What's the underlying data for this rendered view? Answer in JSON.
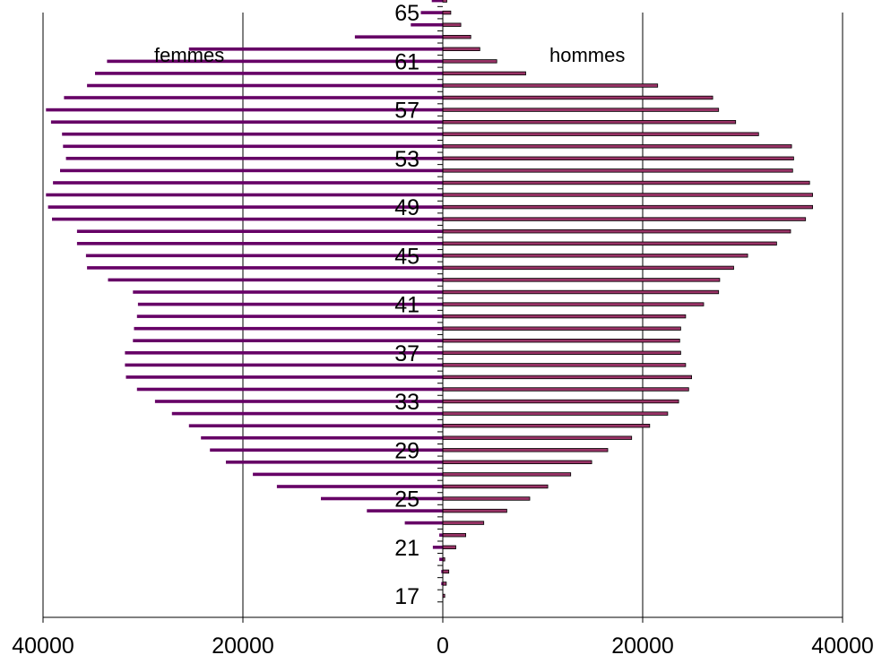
{
  "chart_data": {
    "type": "bar",
    "orientation": "horizontal",
    "layout": "population-pyramid",
    "categories": [
      17,
      18,
      19,
      20,
      21,
      22,
      23,
      24,
      25,
      26,
      27,
      28,
      29,
      30,
      31,
      32,
      33,
      34,
      35,
      36,
      37,
      38,
      39,
      40,
      41,
      42,
      43,
      44,
      45,
      46,
      47,
      48,
      49,
      50,
      51,
      52,
      53,
      54,
      55,
      56,
      57,
      58,
      59,
      60,
      61,
      62,
      63,
      64,
      65,
      66
    ],
    "y_tick_labels": [
      "17",
      "21",
      "25",
      "29",
      "33",
      "37",
      "41",
      "45",
      "49",
      "53",
      "57",
      "61",
      "65"
    ],
    "series": [
      {
        "name": "femmes",
        "side": "left",
        "color": "#660066",
        "values": [
          0,
          150,
          150,
          350,
          1000,
          350,
          3800,
          7600,
          12200,
          16600,
          19000,
          21700,
          23300,
          24200,
          25400,
          27100,
          28800,
          30600,
          31700,
          31800,
          31800,
          31000,
          30900,
          30600,
          30500,
          31000,
          33500,
          35600,
          35700,
          36600,
          36600,
          39100,
          39500,
          39700,
          39000,
          38300,
          37700,
          38000,
          38100,
          39200,
          39700,
          37900,
          35600,
          34800,
          33600,
          25400,
          8800,
          3200,
          2200,
          1100
        ]
      },
      {
        "name": "hommes",
        "side": "right",
        "color": "#993366",
        "outline": "#000000",
        "values": [
          200,
          350,
          600,
          200,
          1300,
          2300,
          4100,
          6400,
          8700,
          10500,
          12800,
          14900,
          16500,
          18900,
          20700,
          22500,
          23600,
          24600,
          24900,
          24300,
          23800,
          23700,
          23800,
          24300,
          26100,
          27600,
          27700,
          29100,
          30500,
          33400,
          34800,
          36300,
          37000,
          37000,
          36700,
          35000,
          35100,
          34900,
          31600,
          29300,
          27600,
          27000,
          21500,
          8300,
          5400,
          3700,
          2800,
          1800,
          800,
          400
        ]
      }
    ],
    "x_tick_labels": [
      "40000",
      "20000",
      "0",
      "20000",
      "40000"
    ],
    "xlim": [
      -40000,
      40000
    ],
    "grid": {
      "vertical": true,
      "horizontal": false
    }
  }
}
